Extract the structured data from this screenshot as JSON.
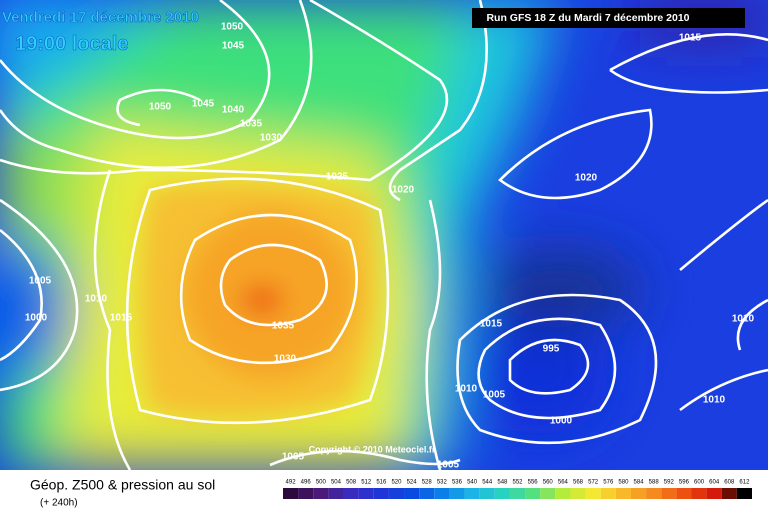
{
  "header": {
    "date": "Vendredi 17 décembre 2010",
    "time": "19:00 locale",
    "run": "Run GFS 18 Z du Mardi 7 décembre 2010"
  },
  "map": {
    "isobar_labels": [
      "1050",
      "1045",
      "1050",
      "1045",
      "1040",
      "1035",
      "1030",
      "1025",
      "1020",
      "1015",
      "1020",
      "1005",
      "1010",
      "1000",
      "1015",
      "1035",
      "1030",
      "1015",
      "995",
      "1010",
      "1005",
      "1000",
      "1010",
      "1010",
      "1005",
      "1005"
    ],
    "copyright": "Copyright © 2010 Meteociel.fr"
  },
  "footer": {
    "title": "Géop. Z500 & pression au sol",
    "lead": "(+ 240h)",
    "color_scale": [
      492,
      496,
      500,
      504,
      508,
      512,
      516,
      520,
      524,
      528,
      532,
      536,
      540,
      544,
      548,
      552,
      556,
      560,
      564,
      568,
      572,
      576,
      580,
      584,
      588,
      592,
      596,
      600,
      604,
      608,
      612
    ]
  }
}
